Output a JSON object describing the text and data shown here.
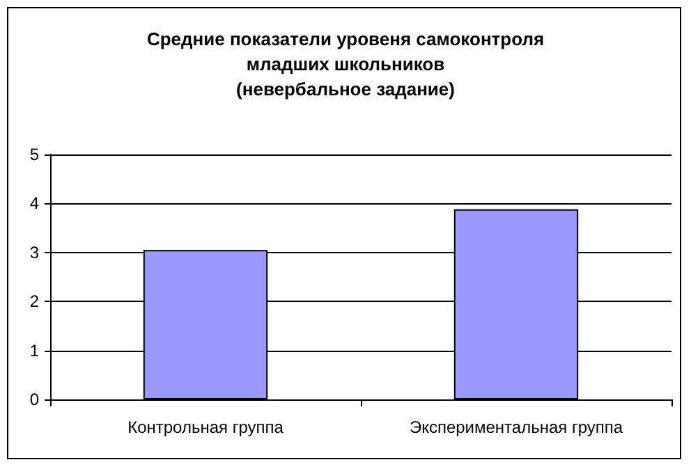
{
  "chart_data": {
    "type": "bar",
    "title": "Средние показатели уровеня самоконтроля\nмладших школьников\n(невербальное задание)",
    "categories": [
      "Контрольная группа",
      "Экспериментальная группа"
    ],
    "values": [
      3.05,
      3.88
    ],
    "color": "#9999ff",
    "ylim": [
      0,
      5
    ],
    "yticks": [
      0,
      1,
      2,
      3,
      4,
      5
    ],
    "grid": "y"
  }
}
